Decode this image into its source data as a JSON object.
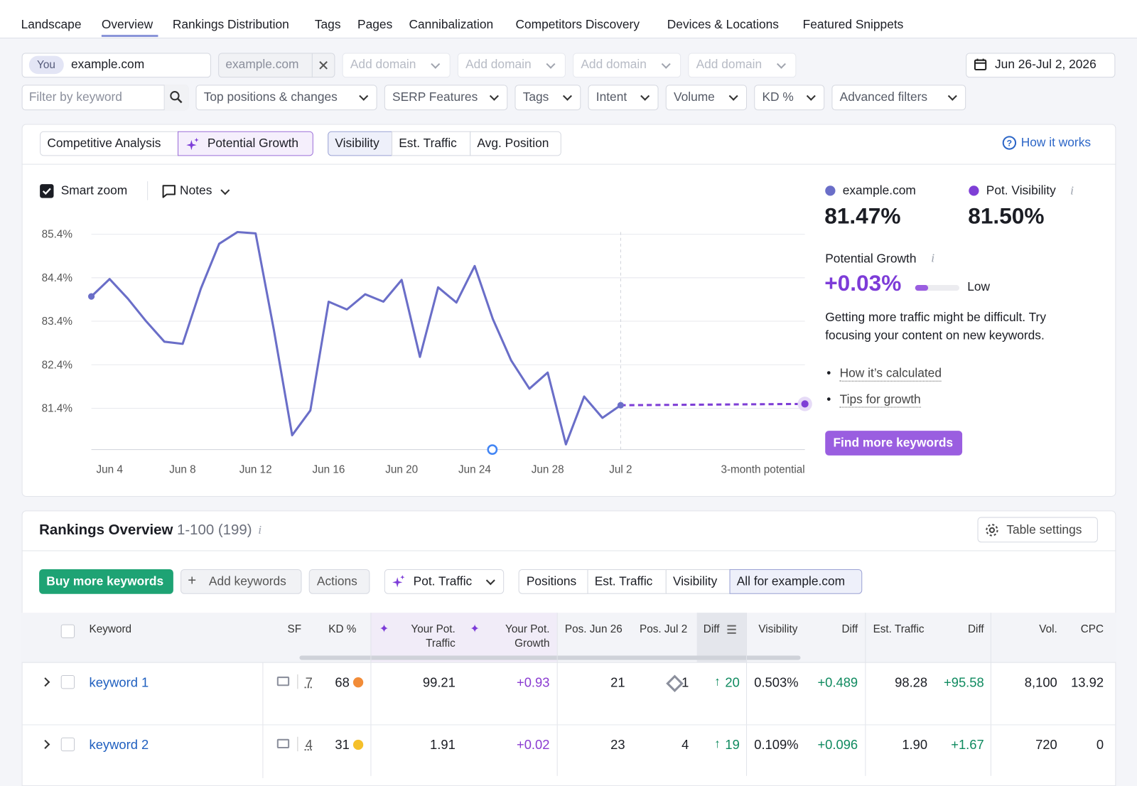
{
  "nav": {
    "items": [
      "Landscape",
      "Overview",
      "Rankings Distribution",
      "Tags",
      "Pages",
      "Cannibalization",
      "Competitors Discovery",
      "Devices & Locations",
      "Featured Snippets"
    ]
  },
  "domains": {
    "you_badge": "You",
    "domain": "example.com",
    "competitor": "example.com",
    "add_domain": [
      "Add domain",
      "Add domain",
      "Add domain",
      "Add domain"
    ],
    "date_range": "Jun 26-Jul 2, 2026"
  },
  "filters": {
    "search_placeholder": "Filter by keyword",
    "dropdowns": [
      "Top positions & changes",
      "SERP Features",
      "Tags",
      "Intent",
      "Volume",
      "KD %",
      "Advanced filters"
    ]
  },
  "chart_panel": {
    "mode_tabs": [
      "Competitive Analysis",
      "Potential Growth"
    ],
    "metric_tabs": [
      "Visibility",
      "Est. Traffic",
      "Avg. Position"
    ],
    "how_it_works": "How it works",
    "smart_zoom": "Smart zoom",
    "notes": "Notes",
    "summary_values": [
      "81.47%",
      "81.50%"
    ],
    "growth_label": "Potential Growth",
    "growth_value": "+0.03%",
    "growth_level": "Low",
    "description": "Getting more traffic might be difficult. Try focusing your content on new keywords.",
    "links": [
      "How it’s calculated",
      "Tips for growth"
    ],
    "button": "Find more keywords"
  },
  "chart_data": {
    "type": "line",
    "categories": [
      null,
      "Jun 4",
      null,
      null,
      null,
      "Jun 8",
      null,
      null,
      null,
      "Jun 12",
      null,
      null,
      null,
      "Jun 16",
      null,
      null,
      null,
      "Jun 20",
      null,
      null,
      null,
      "Jun 24",
      null,
      null,
      null,
      "Jun 28",
      null,
      null,
      null,
      "Jul 2",
      "3-month potential"
    ],
    "series": [
      {
        "name": "example.com",
        "color": "#6a6ec8",
        "values": [
          83.97,
          84.37,
          83.92,
          83.4,
          82.93,
          82.88,
          84.15,
          85.18,
          85.45,
          85.42,
          83.2,
          80.78,
          81.35,
          83.85,
          83.67,
          84.02,
          83.85,
          84.35,
          82.58,
          84.18,
          83.83,
          84.67,
          83.45,
          82.5,
          81.85,
          82.22,
          80.57,
          81.67,
          81.18,
          81.47,
          null
        ]
      },
      {
        "name": "Pot. Visibility",
        "color": "#7e3fd6",
        "values": [
          null,
          null,
          null,
          null,
          null,
          null,
          null,
          null,
          null,
          null,
          null,
          null,
          null,
          null,
          null,
          null,
          null,
          null,
          null,
          null,
          null,
          null,
          null,
          null,
          null,
          null,
          null,
          null,
          null,
          81.47,
          81.5
        ]
      }
    ],
    "ylim": [
      80.45,
      85.5
    ],
    "yticks": [
      {
        "value": 81.4,
        "label": "81.4%"
      },
      {
        "value": 82.4,
        "label": "82.4%"
      },
      {
        "value": 83.4,
        "label": "83.4%"
      },
      {
        "value": 84.4,
        "label": "84.4%"
      },
      {
        "value": 85.4,
        "label": "85.4%"
      }
    ],
    "grid": true
  },
  "rankings": {
    "title": "Rankings Overview",
    "range": "1-100 (199)",
    "table_settings": "Table settings",
    "buttons": [
      "Buy more keywords",
      "Add keywords",
      "Actions",
      "Pot. Traffic"
    ],
    "view_tabs": [
      "Positions",
      "Est. Traffic",
      "Visibility",
      "All for example.com"
    ]
  },
  "table": {
    "columns": [
      "Keyword",
      "SF",
      "KD %",
      "Your Pot. Traffic",
      "Your Pot. Growth",
      "Pos. Jun 26",
      "Pos. Jul 2",
      "Diff",
      "Visibility",
      "Diff",
      "Est. Traffic",
      "Diff",
      "Vol.",
      "CPC"
    ],
    "rows": [
      [
        "keyword 1",
        "7",
        "68",
        "99.21",
        "+0.93",
        "21",
        "1",
        "20",
        "0.503%",
        "+0.489",
        "98.28",
        "+95.58",
        "8,100",
        "13.92"
      ],
      [
        "keyword 2",
        "4",
        "31",
        "1.91",
        "+0.02",
        "23",
        "4",
        "19",
        "0.109%",
        "+0.096",
        "1.90",
        "+1.67",
        "720",
        "0"
      ]
    ]
  }
}
